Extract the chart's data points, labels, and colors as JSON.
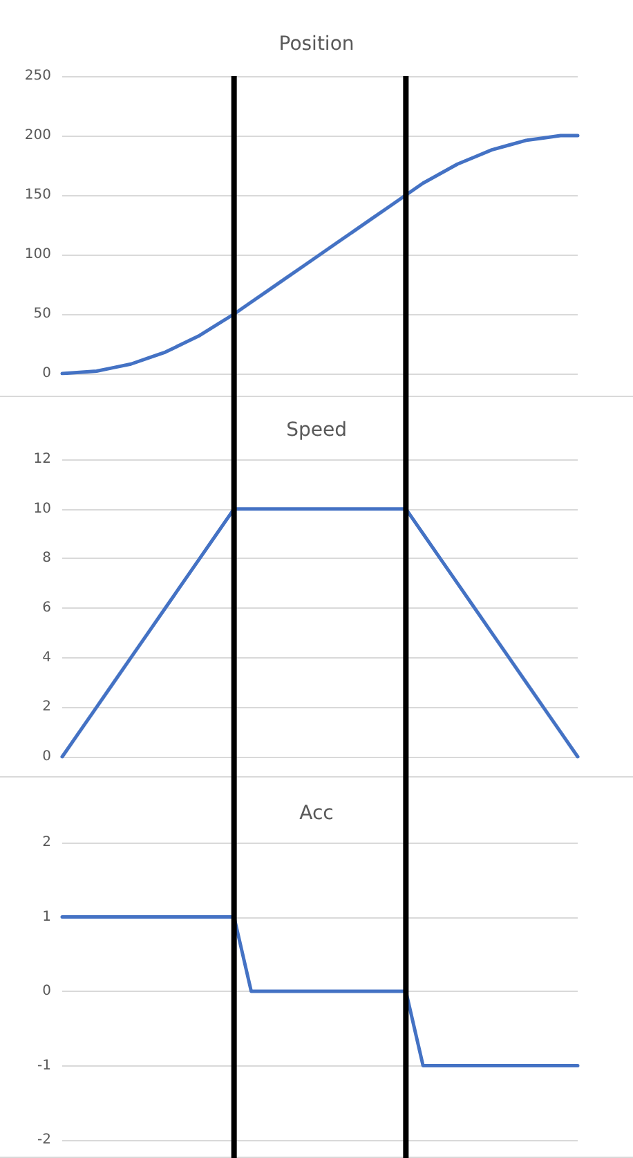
{
  "chart_data": [
    {
      "type": "line",
      "title": "Position",
      "categories": [
        null,
        null,
        null,
        null,
        null,
        null,
        null,
        null,
        null,
        null,
        null,
        null,
        null,
        null,
        null,
        null,
        null,
        null,
        null,
        null,
        null,
        null,
        null,
        null,
        null,
        null,
        null,
        null,
        null,
        null,
        null
      ],
      "series": [
        {
          "color": "#4472c4",
          "values": [
            0,
            1,
            2,
            5,
            8,
            13,
            18,
            25,
            32,
            41,
            50,
            60,
            70,
            80,
            90,
            100,
            110,
            120,
            130,
            140,
            150,
            160,
            168,
            176,
            182,
            188,
            192,
            196,
            198,
            200,
            200
          ]
        }
      ],
      "ylim": [
        0,
        250
      ],
      "yticks": [
        0,
        50,
        100,
        150,
        200,
        250
      ],
      "grid": "y",
      "tick_labels": "y",
      "marker": "none",
      "line_style": "solid"
    },
    {
      "type": "line",
      "title": "Speed",
      "categories": [
        null,
        null,
        null,
        null,
        null,
        null,
        null,
        null,
        null,
        null,
        null,
        null,
        null,
        null,
        null,
        null,
        null,
        null,
        null,
        null,
        null,
        null,
        null,
        null,
        null,
        null,
        null,
        null,
        null,
        null,
        null
      ],
      "series": [
        {
          "color": "#4472c4",
          "values": [
            0,
            1,
            2,
            3,
            4,
            5,
            6,
            7,
            8,
            9,
            10,
            10,
            10,
            10,
            10,
            10,
            10,
            10,
            10,
            10,
            10,
            9,
            8,
            7,
            6,
            5,
            4,
            3,
            2,
            1,
            0
          ]
        }
      ],
      "ylim": [
        0,
        12
      ],
      "yticks": [
        0,
        2,
        4,
        6,
        8,
        10,
        12
      ],
      "grid": "y",
      "tick_labels": "y",
      "marker": "none",
      "line_style": "solid"
    },
    {
      "type": "line",
      "title": "Acc",
      "categories": [
        null,
        null,
        null,
        null,
        null,
        null,
        null,
        null,
        null,
        null,
        null,
        null,
        null,
        null,
        null,
        null,
        null,
        null,
        null,
        null,
        null,
        null,
        null,
        null,
        null,
        null,
        null,
        null,
        null,
        null,
        null
      ],
      "series": [
        {
          "color": "#4472c4",
          "values": [
            1,
            1,
            1,
            1,
            1,
            1,
            1,
            1,
            1,
            1,
            1,
            0,
            0,
            0,
            0,
            0,
            0,
            0,
            0,
            0,
            0,
            -1,
            -1,
            -1,
            -1,
            -1,
            -1,
            -1,
            -1,
            -1,
            -1
          ]
        }
      ],
      "ylim": [
        -2,
        2
      ],
      "yticks": [
        -2,
        -1,
        0,
        1,
        2
      ],
      "grid": "y",
      "tick_labels": "y",
      "marker": "none",
      "line_style": "solid"
    }
  ]
}
